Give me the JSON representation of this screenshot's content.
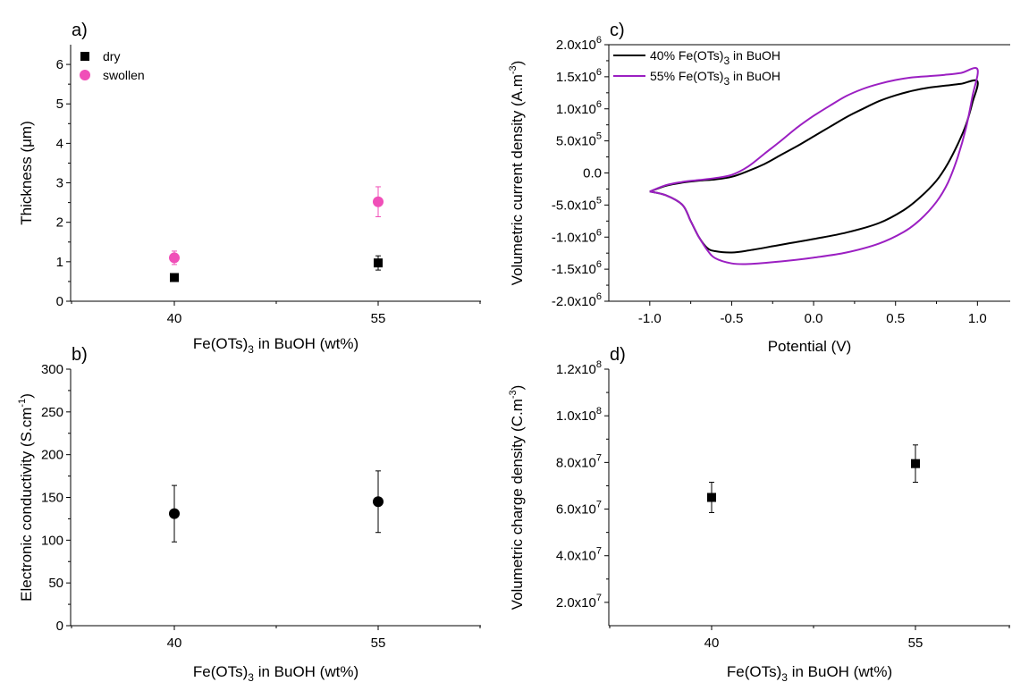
{
  "chart_data": [
    {
      "panel": "a)",
      "type": "scatter",
      "xlabel_parts": [
        "Fe(OTs)",
        "3",
        " in BuOH (wt%)"
      ],
      "ylabel_parts": [
        "Thickness (",
        "μ",
        "m)"
      ],
      "categories": [
        "40",
        "55"
      ],
      "ylim": [
        0,
        6.5
      ],
      "yticks": [
        0,
        1,
        2,
        3,
        4,
        5,
        6
      ],
      "series": [
        {
          "name": "dry",
          "marker": "square",
          "color": "#000000",
          "values": [
            0.6,
            0.97
          ],
          "errors": [
            0.05,
            0.18
          ]
        },
        {
          "name": "swollen",
          "marker": "circle",
          "color": "#f04fb8",
          "values": [
            1.1,
            2.52
          ],
          "errors": [
            0.17,
            0.38
          ]
        }
      ],
      "legend_position": "top-left"
    },
    {
      "panel": "b)",
      "type": "scatter",
      "xlabel_parts": [
        "Fe(OTs)",
        "3",
        " in BuOH (wt%)"
      ],
      "ylabel_parts": [
        "Electronic conductivity (S.cm",
        "-1",
        ")"
      ],
      "categories": [
        "40",
        "55"
      ],
      "ylim": [
        0,
        300
      ],
      "yticks": [
        0,
        50,
        100,
        150,
        200,
        250,
        300
      ],
      "series": [
        {
          "marker": "circle",
          "color": "#000000",
          "values": [
            131,
            145
          ],
          "errors": [
            33,
            36
          ]
        }
      ]
    },
    {
      "panel": "c)",
      "type": "line",
      "xlabel": "Potential (V)",
      "ylabel_parts": [
        "Volumetric current density (A.m",
        "-3",
        ")"
      ],
      "xlim": [
        -1.25,
        1.2
      ],
      "xticks": [
        -1.0,
        -0.5,
        0.0,
        0.5,
        1.0
      ],
      "xtick_labels": [
        "-1.0",
        "-0.5",
        "0.0",
        "0.5",
        "1.0"
      ],
      "ylim": [
        -2000000.0,
        2000000.0
      ],
      "ytick_values": [
        -2000000.0,
        -1500000.0,
        -1000000.0,
        -500000.0,
        0,
        500000.0,
        1000000.0,
        1500000.0,
        2000000.0
      ],
      "ytick_labels": [
        [
          "-2.0x10",
          "6"
        ],
        [
          "-1.5x10",
          "6"
        ],
        [
          "-1.0x10",
          "6"
        ],
        [
          "-5.0x10",
          "5"
        ],
        [
          "0.0",
          ""
        ],
        [
          "5.0x10",
          "5"
        ],
        [
          "1.0x10",
          "6"
        ],
        [
          "1.5x10",
          "6"
        ],
        [
          "2.0x10",
          "6"
        ]
      ],
      "series": [
        {
          "legend_parts": [
            "40% Fe(OTs)",
            "3",
            " in BuOH"
          ],
          "color": "#000000",
          "points": [
            [
              -1.0,
              -290000.0
            ],
            [
              -0.9,
              -200000.0
            ],
            [
              -0.8,
              -150000.0
            ],
            [
              -0.7,
              -120000.0
            ],
            [
              -0.6,
              -100000.0
            ],
            [
              -0.5,
              -60000.0
            ],
            [
              -0.4,
              30000.0
            ],
            [
              -0.3,
              140000.0
            ],
            [
              -0.2,
              280000.0
            ],
            [
              -0.1,
              420000.0
            ],
            [
              0.0,
              570000.0
            ],
            [
              0.1,
              720000.0
            ],
            [
              0.2,
              870000.0
            ],
            [
              0.3,
              1000000.0
            ],
            [
              0.4,
              1120000.0
            ],
            [
              0.5,
              1210000.0
            ],
            [
              0.6,
              1280000.0
            ],
            [
              0.7,
              1330000.0
            ],
            [
              0.8,
              1360000.0
            ],
            [
              0.9,
              1390000.0
            ],
            [
              1.0,
              1430000.0
            ],
            [
              0.97,
              1100000.0
            ],
            [
              0.93,
              750000.0
            ],
            [
              0.88,
              450000.0
            ],
            [
              0.82,
              150000.0
            ],
            [
              0.75,
              -120000.0
            ],
            [
              0.65,
              -380000.0
            ],
            [
              0.55,
              -580000.0
            ],
            [
              0.4,
              -780000.0
            ],
            [
              0.2,
              -930000.0
            ],
            [
              0.0,
              -1030000.0
            ],
            [
              -0.2,
              -1120000.0
            ],
            [
              -0.4,
              -1210000.0
            ],
            [
              -0.5,
              -1240000.0
            ],
            [
              -0.6,
              -1220000.0
            ],
            [
              -0.65,
              -1170000.0
            ],
            [
              -0.7,
              -1000000.0
            ],
            [
              -0.75,
              -750000.0
            ],
            [
              -0.8,
              -500000.0
            ],
            [
              -0.9,
              -350000.0
            ],
            [
              -1.0,
              -290000.0
            ]
          ]
        },
        {
          "legend_parts": [
            "55% Fe(OTs)",
            "3",
            " in BuOH"
          ],
          "color": "#9b1fc2",
          "points": [
            [
              -1.0,
              -290000.0
            ],
            [
              -0.9,
              -190000.0
            ],
            [
              -0.8,
              -140000.0
            ],
            [
              -0.7,
              -110000.0
            ],
            [
              -0.6,
              -80000.0
            ],
            [
              -0.5,
              -30000.0
            ],
            [
              -0.4,
              100000.0
            ],
            [
              -0.3,
              300000.0
            ],
            [
              -0.2,
              500000.0
            ],
            [
              -0.1,
              710000.0
            ],
            [
              0.0,
              890000.0
            ],
            [
              0.1,
              1050000.0
            ],
            [
              0.2,
              1200000.0
            ],
            [
              0.3,
              1310000.0
            ],
            [
              0.4,
              1390000.0
            ],
            [
              0.5,
              1450000.0
            ],
            [
              0.6,
              1490000.0
            ],
            [
              0.7,
              1510000.0
            ],
            [
              0.8,
              1530000.0
            ],
            [
              0.9,
              1560000.0
            ],
            [
              1.0,
              1620000.0
            ],
            [
              0.97,
              1200000.0
            ],
            [
              0.93,
              700000.0
            ],
            [
              0.88,
              250000.0
            ],
            [
              0.82,
              -150000.0
            ],
            [
              0.75,
              -450000.0
            ],
            [
              0.65,
              -730000.0
            ],
            [
              0.55,
              -920000.0
            ],
            [
              0.4,
              -1100000.0
            ],
            [
              0.2,
              -1240000.0
            ],
            [
              0.0,
              -1320000.0
            ],
            [
              -0.2,
              -1380000.0
            ],
            [
              -0.4,
              -1420000.0
            ],
            [
              -0.5,
              -1410000.0
            ],
            [
              -0.6,
              -1330000.0
            ],
            [
              -0.65,
              -1200000.0
            ],
            [
              -0.7,
              -1000000.0
            ],
            [
              -0.75,
              -750000.0
            ],
            [
              -0.8,
              -500000.0
            ],
            [
              -0.9,
              -350000.0
            ],
            [
              -1.0,
              -290000.0
            ]
          ]
        }
      ],
      "legend_position": "top-left"
    },
    {
      "panel": "d)",
      "type": "scatter",
      "xlabel_parts": [
        "Fe(OTs)",
        "3",
        " in BuOH (wt%)"
      ],
      "ylabel_parts": [
        "Volumetric charge density (C.m",
        "-3",
        ")"
      ],
      "categories": [
        "40",
        "55"
      ],
      "ylim": [
        10000000.0,
        120000000.0
      ],
      "ytick_values": [
        20000000.0,
        40000000.0,
        60000000.0,
        80000000.0,
        100000000.0,
        120000000.0
      ],
      "ytick_labels": [
        [
          "2.0x10",
          "7"
        ],
        [
          "4.0x10",
          "7"
        ],
        [
          "6.0x10",
          "7"
        ],
        [
          "8.0x10",
          "7"
        ],
        [
          "1.0x10",
          "8"
        ],
        [
          "1.2x10",
          "8"
        ]
      ],
      "series": [
        {
          "marker": "square",
          "color": "#000000",
          "values": [
            65000000.0,
            79500000.0
          ],
          "errors": [
            6500000.0,
            8000000.0
          ]
        }
      ]
    }
  ]
}
